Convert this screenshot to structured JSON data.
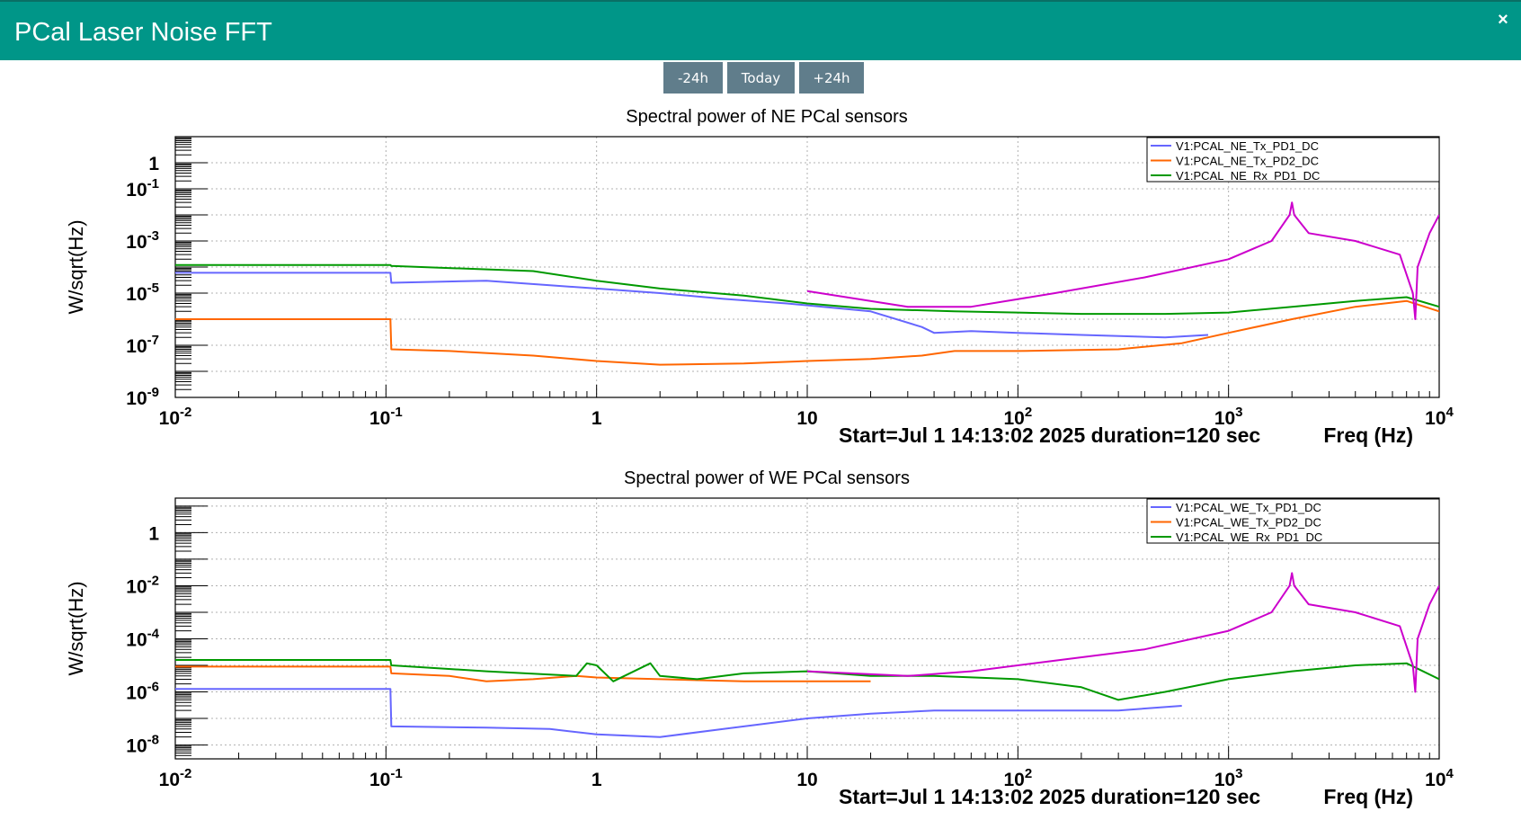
{
  "window": {
    "title": "PCal Laser Noise FFT",
    "close_glyph": "×"
  },
  "toolbar": {
    "prev_label": "-24h",
    "today_label": "Today",
    "next_label": "+24h"
  },
  "colors": {
    "header": "#009688",
    "button": "#607d8b",
    "blue": "#6666ff",
    "orange": "#ff6600",
    "green": "#009900",
    "magenta": "#cc00cc"
  },
  "chart_data": [
    {
      "type": "line",
      "title": "Spectral power of NE PCal sensors",
      "ylabel": "W/sqrt(Hz)",
      "xlabel": "Freq (Hz)",
      "annotation": "Start=Jul  1 14:13:02 2025 duration=120 sec",
      "xscale": "log",
      "yscale": "log",
      "xlim": [
        0.01,
        10000
      ],
      "ylim": [
        1e-09,
        10
      ],
      "xticks": [
        {
          "v": 0.01,
          "b": "10",
          "e": "-2"
        },
        {
          "v": 0.1,
          "b": "10",
          "e": "-1"
        },
        {
          "v": 1,
          "b": "1",
          "e": ""
        },
        {
          "v": 10,
          "b": "10",
          "e": ""
        },
        {
          "v": 100,
          "b": "10",
          "e": "2"
        },
        {
          "v": 1000,
          "b": "10",
          "e": "3"
        },
        {
          "v": 10000,
          "b": "10",
          "e": "4"
        }
      ],
      "yticks": [
        {
          "v": 1e-09,
          "b": "10",
          "e": "-9"
        },
        {
          "v": 1e-07,
          "b": "10",
          "e": "-7"
        },
        {
          "v": 1e-05,
          "b": "10",
          "e": "-5"
        },
        {
          "v": 0.001,
          "b": "10",
          "e": "-3"
        },
        {
          "v": 0.1,
          "b": "10",
          "e": "-1"
        },
        {
          "v": 1,
          "b": "1",
          "e": ""
        }
      ],
      "grid": true,
      "legend": "top-right",
      "series": [
        {
          "name": "V1:PCAL_NE_Tx_PD1_DC",
          "color": "#6666ff",
          "x": [
            0.01,
            0.105,
            0.106,
            0.3,
            0.6,
            1,
            2,
            4,
            8,
            20,
            35,
            40,
            60,
            100,
            200,
            500,
            800
          ],
          "y": [
            6e-05,
            6e-05,
            2.5e-05,
            3e-05,
            2e-05,
            1.5e-05,
            1e-05,
            6e-06,
            4e-06,
            2e-06,
            5e-07,
            3e-07,
            3.5e-07,
            3e-07,
            2.5e-07,
            2e-07,
            2.5e-07
          ]
        },
        {
          "name": "V1:PCAL_NE_Tx_PD2_DC",
          "color": "#ff6600",
          "x": [
            0.01,
            0.105,
            0.106,
            0.2,
            0.5,
            1,
            2,
            5,
            10,
            20,
            35,
            50,
            100,
            300,
            600,
            1000,
            2000,
            4000,
            7000,
            10000
          ],
          "y": [
            1e-06,
            1e-06,
            7e-08,
            6e-08,
            4e-08,
            2.5e-08,
            1.8e-08,
            2e-08,
            2.5e-08,
            3e-08,
            4e-08,
            6e-08,
            6e-08,
            7e-08,
            1.2e-07,
            3e-07,
            1e-06,
            3e-06,
            5e-06,
            2e-06
          ]
        },
        {
          "name": "V1:PCAL_NE_Rx_PD1_DC",
          "color": "#009900",
          "x": [
            0.01,
            0.105,
            0.106,
            0.5,
            1,
            2,
            5,
            10,
            20,
            50,
            100,
            200,
            500,
            1000,
            2000,
            4000,
            7000,
            10000
          ],
          "y": [
            0.00012,
            0.00012,
            0.00011,
            7e-05,
            3e-05,
            1.5e-05,
            8e-06,
            4e-06,
            2.5e-06,
            2e-06,
            1.8e-06,
            1.6e-06,
            1.6e-06,
            1.8e-06,
            3e-06,
            5e-06,
            7e-06,
            3e-06
          ]
        },
        {
          "color": "#cc00cc",
          "x": [
            10,
            30,
            60,
            150,
            400,
            1000,
            1600,
            1950,
            2000,
            2050,
            2400,
            4000,
            6500,
            7500,
            7700,
            7900,
            9000,
            10000
          ],
          "y": [
            1.2e-05,
            3e-06,
            3e-06,
            1e-05,
            4e-05,
            0.0002,
            0.001,
            0.01,
            0.03,
            0.01,
            0.002,
            0.001,
            0.0003,
            1e-05,
            1e-06,
            0.0001,
            0.002,
            0.01
          ]
        }
      ]
    },
    {
      "type": "line",
      "title": "Spectral power of WE PCal sensors",
      "ylabel": "W/sqrt(Hz)",
      "xlabel": "Freq (Hz)",
      "annotation": "Start=Jul  1 14:13:02 2025 duration=120 sec",
      "xscale": "log",
      "yscale": "log",
      "xlim": [
        0.01,
        10000
      ],
      "ylim": [
        3e-09,
        20
      ],
      "xticks": [
        {
          "v": 0.01,
          "b": "10",
          "e": "-2"
        },
        {
          "v": 0.1,
          "b": "10",
          "e": "-1"
        },
        {
          "v": 1,
          "b": "1",
          "e": ""
        },
        {
          "v": 10,
          "b": "10",
          "e": ""
        },
        {
          "v": 100,
          "b": "10",
          "e": "2"
        },
        {
          "v": 1000,
          "b": "10",
          "e": "3"
        },
        {
          "v": 10000,
          "b": "10",
          "e": "4"
        }
      ],
      "yticks": [
        {
          "v": 1e-08,
          "b": "10",
          "e": "-8"
        },
        {
          "v": 1e-06,
          "b": "10",
          "e": "-6"
        },
        {
          "v": 0.0001,
          "b": "10",
          "e": "-4"
        },
        {
          "v": 0.01,
          "b": "10",
          "e": "-2"
        },
        {
          "v": 1,
          "b": "1",
          "e": ""
        }
      ],
      "grid": true,
      "legend": "top-right",
      "series": [
        {
          "name": "V1:PCAL_WE_Tx_PD1_DC",
          "color": "#6666ff",
          "x": [
            0.01,
            0.105,
            0.106,
            0.3,
            0.6,
            1,
            2,
            4,
            10,
            20,
            40,
            100,
            300,
            600
          ],
          "y": [
            1.3e-06,
            1.3e-06,
            5e-08,
            4.5e-08,
            4e-08,
            2.5e-08,
            2e-08,
            4e-08,
            1e-07,
            1.5e-07,
            2e-07,
            2e-07,
            2e-07,
            3e-07
          ]
        },
        {
          "name": "V1:PCAL_WE_Tx_PD2_DC",
          "color": "#ff6600",
          "x": [
            0.01,
            0.105,
            0.106,
            0.2,
            0.3,
            0.5,
            0.8,
            1,
            2,
            5,
            10,
            20
          ],
          "y": [
            9e-06,
            9e-06,
            5e-06,
            4e-06,
            2.5e-06,
            3e-06,
            4e-06,
            3.5e-06,
            3e-06,
            2.5e-06,
            2.5e-06,
            2.5e-06
          ]
        },
        {
          "name": "V1:PCAL_WE_Rx_PD1_DC",
          "color": "#009900",
          "x": [
            0.01,
            0.105,
            0.106,
            0.3,
            0.8,
            0.9,
            1,
            1.2,
            1.8,
            2,
            3,
            5,
            10,
            20,
            40,
            100,
            200,
            300,
            500,
            1000,
            2000,
            4000,
            7000,
            10000
          ],
          "y": [
            1.6e-05,
            1.6e-05,
            1e-05,
            6e-06,
            4e-06,
            1.2e-05,
            1e-05,
            2.5e-06,
            1.2e-05,
            4e-06,
            3e-06,
            5e-06,
            6e-06,
            4e-06,
            4e-06,
            3e-06,
            1.5e-06,
            5e-07,
            1e-06,
            3e-06,
            6e-06,
            1e-05,
            1.2e-05,
            3e-06
          ]
        },
        {
          "color": "#cc00cc",
          "x": [
            10,
            30,
            60,
            150,
            400,
            1000,
            1600,
            1950,
            2000,
            2050,
            2400,
            4000,
            6500,
            7500,
            7700,
            7900,
            9000,
            10000
          ],
          "y": [
            6e-06,
            4e-06,
            6e-06,
            1.5e-05,
            4e-05,
            0.0002,
            0.001,
            0.01,
            0.03,
            0.01,
            0.002,
            0.001,
            0.0003,
            1e-05,
            1e-06,
            0.0001,
            0.002,
            0.01
          ]
        }
      ]
    }
  ]
}
